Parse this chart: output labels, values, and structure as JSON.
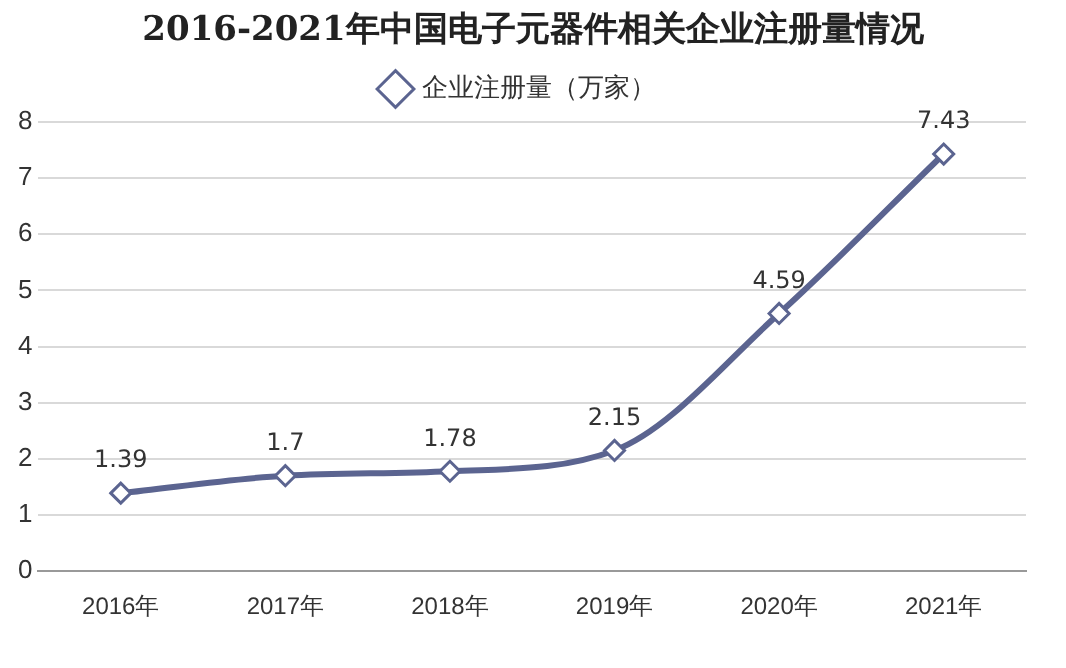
{
  "chart_data": {
    "type": "line",
    "title": "2016-2021年中国电子元器件相关企业注册量情况",
    "categories": [
      "2016年",
      "2017年",
      "2018年",
      "2019年",
      "2020年",
      "2021年"
    ],
    "series": [
      {
        "name": "企业注册量（万家）",
        "color": "#5b6490",
        "values": [
          1.39,
          1.7,
          1.78,
          2.15,
          4.59,
          7.43
        ]
      }
    ],
    "ylim": [
      0,
      8
    ],
    "yticks": [
      0,
      1,
      2,
      3,
      4,
      5,
      6,
      7,
      8
    ],
    "grid": "y",
    "legend": "top",
    "marker": "diamond",
    "line_style": "solid",
    "data_labels": true
  }
}
